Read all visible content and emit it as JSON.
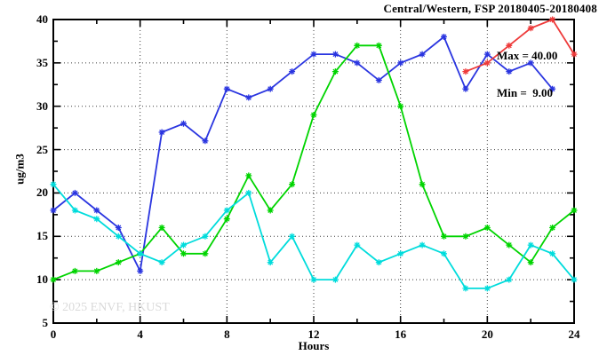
{
  "title": "Central/Western, FSP 20180405-20180408",
  "legend": {
    "max_label": "Max = 40.00",
    "min_label": "Min =  9.00"
  },
  "watermark": "© 2025 ENVF, HKUST",
  "axes": {
    "y_label": "ug/m3",
    "x_label": "Hours",
    "y_ticks": [
      5,
      10,
      15,
      20,
      25,
      30,
      35,
      40
    ],
    "x_ticks": [
      0,
      4,
      8,
      12,
      16,
      20,
      24
    ]
  },
  "colors": {
    "axis": "#000000",
    "grid": "#3c3c3c",
    "watermark": "#dadada",
    "background": "#ffffff",
    "blue": "#2a35e0",
    "green": "#00d400",
    "cyan": "#00dcdc",
    "red": "#ee3a3a"
  },
  "chart_data": {
    "type": "line",
    "title": "Central/Western, FSP 20180405-20180408",
    "xlabel": "Hours",
    "ylabel": "ug/m3",
    "xlim": [
      0,
      24
    ],
    "ylim": [
      5,
      40
    ],
    "grid": true,
    "legend_position": "top-right",
    "annotations": {
      "max": 40.0,
      "min": 9.0
    },
    "x_gridlines": [
      4,
      8,
      12,
      16,
      20
    ],
    "y_gridlines": [
      10,
      15,
      20,
      25,
      30,
      35
    ],
    "x_minor_step": 2,
    "y_minor_step": 2.5,
    "series": [
      {
        "name": "blue",
        "color": "#2a35e0",
        "x": [
          0,
          1,
          2,
          3,
          4,
          5,
          6,
          7,
          8,
          9,
          10,
          11,
          12,
          13,
          14,
          15,
          16,
          17,
          18,
          19,
          20,
          21,
          22,
          23
        ],
        "values": [
          18,
          20,
          18,
          16,
          11,
          27,
          28,
          26,
          32,
          31,
          32,
          34,
          36,
          36,
          35,
          33,
          35,
          36,
          38,
          32,
          36,
          34,
          35,
          32
        ]
      },
      {
        "name": "green",
        "color": "#00d400",
        "x": [
          0,
          1,
          2,
          3,
          4,
          5,
          6,
          7,
          8,
          9,
          10,
          11,
          12,
          13,
          14,
          15,
          16,
          17,
          18,
          19,
          20,
          21,
          22,
          23,
          24
        ],
        "values": [
          10,
          11,
          11,
          12,
          13,
          16,
          13,
          13,
          17,
          22,
          18,
          21,
          29,
          34,
          37,
          37,
          30,
          21,
          15,
          15,
          16,
          14,
          12,
          16,
          18
        ]
      },
      {
        "name": "cyan",
        "color": "#00dcdc",
        "x": [
          0,
          1,
          2,
          3,
          4,
          5,
          6,
          7,
          8,
          9,
          10,
          11,
          12,
          13,
          14,
          15,
          16,
          17,
          18,
          19,
          20,
          21,
          22,
          23,
          24
        ],
        "values": [
          21,
          18,
          17,
          15,
          13,
          12,
          14,
          15,
          18,
          20,
          12,
          15,
          10,
          10,
          14,
          12,
          13,
          14,
          13,
          9,
          9,
          10,
          14,
          13,
          10
        ]
      },
      {
        "name": "red",
        "color": "#ee3a3a",
        "x": [
          19,
          20,
          21,
          22,
          23,
          24
        ],
        "values": [
          34,
          35,
          37,
          39,
          40,
          36
        ]
      }
    ]
  }
}
